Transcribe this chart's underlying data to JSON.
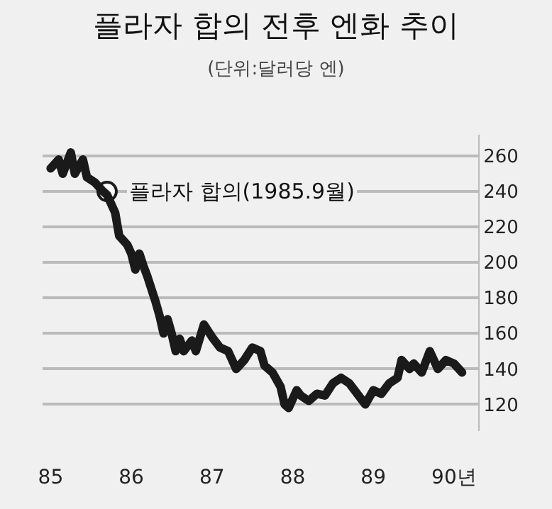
{
  "chart_data": {
    "type": "line",
    "title": "플라자 합의 전후 엔화 추이",
    "subtitle": "(단위:달러당 엔)",
    "x": [
      85.0,
      85.1,
      85.15,
      85.25,
      85.3,
      85.4,
      85.45,
      85.55,
      85.65,
      85.7,
      85.8,
      85.85,
      85.95,
      86.0,
      86.05,
      86.1,
      86.15,
      86.2,
      86.3,
      86.35,
      86.4,
      86.45,
      86.5,
      86.55,
      86.6,
      86.65,
      86.75,
      86.8,
      86.9,
      87.0,
      87.1,
      87.2,
      87.3,
      87.4,
      87.5,
      87.6,
      87.65,
      87.75,
      87.85,
      87.9,
      87.95,
      88.05,
      88.1,
      88.2,
      88.3,
      88.4,
      88.5,
      88.6,
      88.7,
      88.8,
      88.9,
      89.0,
      89.1,
      89.2,
      89.3,
      89.35,
      89.45,
      89.5,
      89.6,
      89.7,
      89.8,
      89.9,
      90.0,
      90.1
    ],
    "series": [
      {
        "color": "#1a1a1a",
        "values": [
          253,
          258,
          250,
          262,
          250,
          258,
          248,
          245,
          240,
          238,
          228,
          215,
          210,
          205,
          196,
          205,
          198,
          192,
          178,
          170,
          160,
          168,
          160,
          150,
          157,
          150,
          156,
          150,
          165,
          158,
          152,
          150,
          140,
          145,
          152,
          150,
          142,
          138,
          130,
          120,
          118,
          128,
          125,
          122,
          126,
          125,
          132,
          135,
          132,
          126,
          120,
          128,
          126,
          132,
          135,
          145,
          140,
          143,
          138,
          150,
          140,
          145,
          143,
          138
        ]
      }
    ],
    "annotations": [
      {
        "text": "플라자 합의(1985.9월)",
        "x": 85.7,
        "y": 240
      }
    ],
    "xlim": [
      84.9,
      90.3
    ],
    "xticks": [
      85,
      86,
      87,
      88,
      89,
      {
        "value": 90,
        "label": "90년"
      }
    ],
    "ylim": [
      105,
      272
    ],
    "yticks": [
      120,
      140,
      160,
      180,
      200,
      220,
      240,
      260
    ],
    "grid": "y",
    "marker": "none",
    "line_style": "solid"
  }
}
